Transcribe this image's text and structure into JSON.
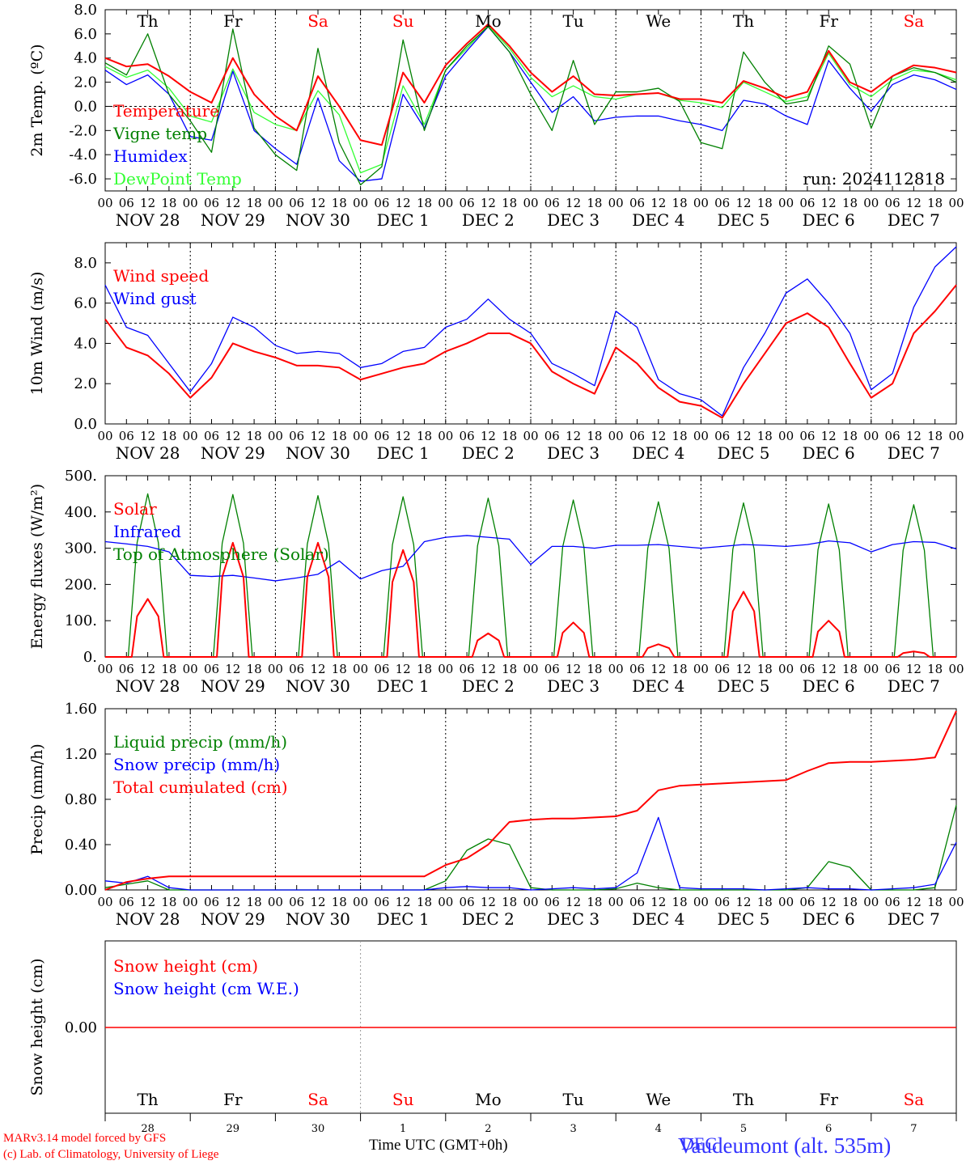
{
  "days": [
    "Th",
    "Fr",
    "Sa",
    "Su",
    "Mo",
    "Tu",
    "We",
    "Th",
    "Fr",
    "Sa"
  ],
  "weekend_days": [
    2,
    3,
    9
  ],
  "dates": [
    "NOV 28",
    "NOV 29",
    "NOV 30",
    "DEC  1",
    "DEC  2",
    "DEC  3",
    "DEC  4",
    "DEC  5",
    "DEC  6",
    "DEC  7"
  ],
  "hour_ticks": [
    "00",
    "06",
    "12",
    "18"
  ],
  "last_tick": "00",
  "day_numbers": [
    "28",
    "29",
    "30",
    "1",
    "2",
    "3",
    "4",
    "5",
    "6",
    "7"
  ],
  "colors": {
    "red": "#ff0000",
    "green": "#008000",
    "blue": "#0000ff",
    "lightgreen": "#33ff33",
    "weekend": "#ff0000"
  },
  "footer": {
    "credit_line1": "MARv3.14 model forced by GFS",
    "credit_line2": "(c) Lab. of Climatology, University of Liege",
    "x_title": "Time UTC (GMT+0h)",
    "location": "Vaudeumont (alt. 535m)",
    "location_under": "DEC"
  },
  "chart_data": [
    {
      "type": "line",
      "ylabel": "2m Temp. (ºC)",
      "ylim": [
        -7,
        8
      ],
      "yticks": [
        "8.0",
        "6.0",
        "4.0",
        "2.0",
        "0.0",
        "-2.0",
        "-4.0",
        "-6.0"
      ],
      "ytick_values": [
        8,
        6,
        4,
        2,
        0,
        -2,
        -4,
        -6
      ],
      "dashed_y": 0,
      "annotation": "run: 2024112818",
      "x_hours": [
        0,
        6,
        12,
        18,
        24,
        30,
        36,
        42,
        48,
        54,
        60,
        66,
        72,
        78,
        84,
        90,
        96,
        102,
        108,
        114,
        120,
        126,
        132,
        138,
        144,
        150,
        156,
        162,
        168,
        174,
        180,
        186,
        192,
        198,
        204,
        210,
        216,
        222,
        228,
        234,
        240
      ],
      "series": [
        {
          "name": "Temperature",
          "color": "red",
          "values": [
            4.0,
            3.3,
            3.5,
            2.5,
            1.2,
            0.3,
            4.0,
            1.0,
            -0.8,
            -2.0,
            2.5,
            0.0,
            -2.8,
            -3.2,
            2.8,
            0.3,
            3.4,
            5.2,
            6.8,
            5.0,
            2.8,
            1.2,
            2.5,
            1.0,
            0.9,
            1.0,
            1.1,
            0.6,
            0.6,
            0.3,
            2.1,
            1.5,
            0.7,
            1.2,
            4.6,
            2.0,
            1.2,
            2.5,
            3.4,
            3.2,
            2.8
          ]
        },
        {
          "name": "Vigne temp",
          "color": "green",
          "values": [
            3.6,
            2.6,
            6.0,
            1.0,
            -1.2,
            -3.8,
            6.4,
            -1.8,
            -4.0,
            -5.3,
            4.8,
            -3.0,
            -6.5,
            -5.0,
            5.5,
            -2.0,
            3.0,
            5.0,
            6.6,
            4.5,
            1.0,
            -2.0,
            3.8,
            -1.5,
            1.2,
            1.2,
            1.5,
            0.4,
            -3.0,
            -3.5,
            4.5,
            2.0,
            0.2,
            0.5,
            5.0,
            3.5,
            -1.8,
            2.5,
            3.2,
            2.8,
            2.0
          ]
        },
        {
          "name": "Humidex",
          "color": "blue",
          "values": [
            3.0,
            1.8,
            2.6,
            1.0,
            -2.5,
            -2.8,
            2.9,
            -2.0,
            -3.5,
            -4.8,
            0.7,
            -4.5,
            -6.2,
            -6.0,
            1.0,
            -1.8,
            2.5,
            4.6,
            6.6,
            4.5,
            2.0,
            -0.5,
            0.8,
            -1.2,
            -0.9,
            -0.8,
            -0.8,
            -1.2,
            -1.5,
            -2.0,
            0.5,
            0.2,
            -0.8,
            -1.5,
            3.8,
            1.5,
            -0.4,
            1.8,
            2.6,
            2.2,
            1.4
          ]
        },
        {
          "name": "DewPoint Temp",
          "color": "lightgreen",
          "values": [
            3.3,
            2.4,
            3.0,
            1.5,
            -0.8,
            -1.3,
            3.1,
            -0.5,
            -1.5,
            -2.0,
            1.3,
            -0.7,
            -5.5,
            -4.8,
            1.7,
            -1.5,
            3.0,
            4.8,
            6.7,
            4.8,
            2.4,
            0.8,
            1.7,
            0.8,
            0.6,
            1.0,
            1.1,
            0.5,
            0.3,
            -0.1,
            2.0,
            1.2,
            0.4,
            0.8,
            4.4,
            1.8,
            0.8,
            2.2,
            3.0,
            2.8,
            2.2
          ]
        }
      ]
    },
    {
      "type": "line",
      "ylabel": "10m Wind (m/s)",
      "ylim": [
        0,
        9
      ],
      "yticks": [
        "8.0",
        "6.0",
        "4.0",
        "2.0",
        "0.0"
      ],
      "ytick_values": [
        8,
        6,
        4,
        2,
        0
      ],
      "dashed_y": 5,
      "x_hours": [
        0,
        6,
        12,
        18,
        24,
        30,
        36,
        42,
        48,
        54,
        60,
        66,
        72,
        78,
        84,
        90,
        96,
        102,
        108,
        114,
        120,
        126,
        132,
        138,
        144,
        150,
        156,
        162,
        168,
        174,
        180,
        186,
        192,
        198,
        204,
        210,
        216,
        222,
        228,
        234,
        240
      ],
      "series": [
        {
          "name": "Wind speed",
          "color": "red",
          "values": [
            5.2,
            3.8,
            3.4,
            2.5,
            1.3,
            2.3,
            4.0,
            3.6,
            3.3,
            2.9,
            2.9,
            2.8,
            2.2,
            2.5,
            2.8,
            3.0,
            3.6,
            4.0,
            4.5,
            4.5,
            4.0,
            2.6,
            2.0,
            1.5,
            3.8,
            3.0,
            1.8,
            1.1,
            0.9,
            0.3,
            2.0,
            3.5,
            5.0,
            5.5,
            4.8,
            3.0,
            1.3,
            2.0,
            4.5,
            5.6,
            6.9
          ]
        },
        {
          "name": "Wind gust",
          "color": "blue",
          "values": [
            6.9,
            4.8,
            4.4,
            3.0,
            1.6,
            3.0,
            5.3,
            4.8,
            3.9,
            3.5,
            3.6,
            3.5,
            2.8,
            3.0,
            3.6,
            3.8,
            4.8,
            5.2,
            6.2,
            5.2,
            4.5,
            3.0,
            2.5,
            1.9,
            5.6,
            4.8,
            2.2,
            1.5,
            1.2,
            0.4,
            2.8,
            4.5,
            6.5,
            7.2,
            6.0,
            4.5,
            1.7,
            2.5,
            5.8,
            7.8,
            8.8
          ]
        }
      ]
    },
    {
      "type": "line",
      "ylabel": "Energy fluxes (W/m²)",
      "ylim": [
        0,
        500
      ],
      "yticks": [
        "500.",
        "400.",
        "300.",
        "200.",
        "100.",
        "0."
      ],
      "ytick_values": [
        500,
        400,
        300,
        200,
        100,
        0
      ],
      "x_hours": [
        0,
        6,
        12,
        18,
        24,
        30,
        36,
        42,
        48,
        54,
        60,
        66,
        72,
        78,
        84,
        90,
        96,
        102,
        108,
        114,
        120,
        126,
        132,
        138,
        144,
        150,
        156,
        162,
        168,
        174,
        180,
        186,
        192,
        198,
        204,
        210,
        216,
        222,
        228,
        234,
        240
      ],
      "series": [
        {
          "name": "Solar",
          "color": "red",
          "peaks": [
            160,
            315,
            315,
            295,
            65,
            95,
            35,
            180,
            100,
            15
          ]
        },
        {
          "name": "Infrared",
          "color": "blue",
          "values": [
            318,
            312,
            305,
            290,
            225,
            222,
            225,
            218,
            210,
            218,
            228,
            265,
            215,
            238,
            250,
            318,
            330,
            335,
            330,
            325,
            255,
            305,
            305,
            300,
            308,
            308,
            310,
            305,
            300,
            305,
            310,
            308,
            305,
            310,
            320,
            315,
            290,
            310,
            318,
            316,
            298
          ]
        },
        {
          "name": "Top of Atmosphere (Solar)",
          "color": "green",
          "peaks": [
            450,
            448,
            445,
            442,
            438,
            433,
            428,
            425,
            422,
            420
          ]
        }
      ]
    },
    {
      "type": "line",
      "ylabel": "Precip (mm/h)",
      "ylim": [
        0,
        1.6
      ],
      "yticks": [
        "1.60",
        "1.20",
        "0.80",
        "0.40",
        "0.00"
      ],
      "ytick_values": [
        1.6,
        1.2,
        0.8,
        0.4,
        0.0
      ],
      "x_hours": [
        0,
        6,
        12,
        18,
        24,
        30,
        36,
        42,
        48,
        54,
        60,
        66,
        72,
        78,
        84,
        90,
        96,
        102,
        108,
        114,
        120,
        126,
        132,
        138,
        144,
        150,
        156,
        162,
        168,
        174,
        180,
        186,
        192,
        198,
        204,
        210,
        216,
        222,
        228,
        234,
        240
      ],
      "series": [
        {
          "name": "Liquid precip (mm/h)",
          "color": "green",
          "values": [
            0.02,
            0.05,
            0.08,
            0,
            0,
            0,
            0,
            0,
            0,
            0,
            0,
            0,
            0,
            0,
            0,
            0,
            0.08,
            0.35,
            0.45,
            0.4,
            0.02,
            0,
            0,
            0,
            0.01,
            0.06,
            0.02,
            0,
            0,
            0,
            0,
            0,
            0,
            0.02,
            0.25,
            0.2,
            0,
            0,
            0,
            0.02,
            0.75
          ]
        },
        {
          "name": "Snow precip (mm/h)",
          "color": "blue",
          "values": [
            0.08,
            0.06,
            0.12,
            0.02,
            0,
            0,
            0,
            0,
            0,
            0,
            0,
            0,
            0,
            0,
            0,
            0,
            0.02,
            0.03,
            0.02,
            0.02,
            0,
            0.01,
            0.02,
            0.01,
            0.02,
            0.15,
            0.64,
            0.02,
            0.01,
            0.01,
            0.01,
            0,
            0.01,
            0.02,
            0.01,
            0.01,
            0,
            0.01,
            0.02,
            0.05,
            0.42
          ]
        },
        {
          "name": "Total cumulated (cm)",
          "color": "red",
          "values": [
            0.0,
            0.07,
            0.1,
            0.12,
            0.12,
            0.12,
            0.12,
            0.12,
            0.12,
            0.12,
            0.12,
            0.12,
            0.12,
            0.12,
            0.12,
            0.12,
            0.22,
            0.28,
            0.4,
            0.6,
            0.62,
            0.63,
            0.63,
            0.64,
            0.65,
            0.7,
            0.88,
            0.92,
            0.93,
            0.94,
            0.95,
            0.96,
            0.97,
            1.05,
            1.12,
            1.13,
            1.13,
            1.14,
            1.15,
            1.17,
            1.58
          ]
        }
      ]
    },
    {
      "type": "line",
      "ylabel": "Snow height (cm)",
      "yticks": [
        "0.00"
      ],
      "ytick_values": [
        0
      ],
      "series": [
        {
          "name": "Snow height (cm)",
          "color": "red",
          "values": [
            0,
            0
          ]
        },
        {
          "name": "Snow height (cm W.E.)",
          "color": "blue",
          "values": [
            0,
            0
          ]
        }
      ]
    }
  ]
}
